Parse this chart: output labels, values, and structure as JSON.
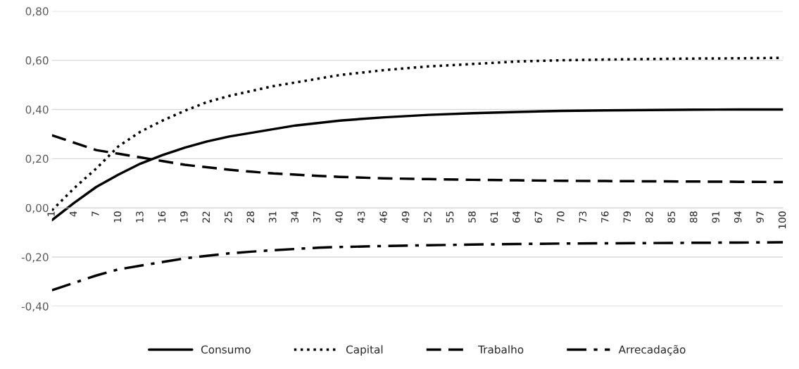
{
  "chart_data": {
    "type": "line",
    "x": [
      1,
      4,
      7,
      10,
      13,
      16,
      19,
      22,
      25,
      28,
      31,
      34,
      37,
      40,
      46,
      52,
      58,
      64,
      70,
      76,
      82,
      88,
      94,
      100
    ],
    "series": [
      {
        "name": "Consumo",
        "color": "#000000",
        "line_style": "solid",
        "values": [
          -0.05,
          0.02,
          0.085,
          0.135,
          0.18,
          0.215,
          0.245,
          0.27,
          0.29,
          0.305,
          0.32,
          0.335,
          0.345,
          0.355,
          0.368,
          0.378,
          0.385,
          0.39,
          0.394,
          0.396,
          0.398,
          0.399,
          0.4,
          0.4
        ]
      },
      {
        "name": "Capital",
        "color": "#000000",
        "line_style": "dotted",
        "values": [
          -0.01,
          0.08,
          0.16,
          0.25,
          0.31,
          0.355,
          0.395,
          0.43,
          0.455,
          0.475,
          0.495,
          0.51,
          0.525,
          0.54,
          0.56,
          0.575,
          0.585,
          0.595,
          0.6,
          0.603,
          0.605,
          0.607,
          0.608,
          0.61
        ]
      },
      {
        "name": "Trabalho",
        "color": "#000000",
        "line_style": "dashed",
        "values": [
          0.295,
          0.265,
          0.235,
          0.22,
          0.205,
          0.19,
          0.175,
          0.165,
          0.155,
          0.147,
          0.14,
          0.135,
          0.13,
          0.126,
          0.12,
          0.117,
          0.114,
          0.112,
          0.11,
          0.109,
          0.108,
          0.107,
          0.106,
          0.105
        ]
      },
      {
        "name": "Arrecadação",
        "color": "#000000",
        "line_style": "dashdot",
        "values": [
          -0.335,
          -0.305,
          -0.275,
          -0.25,
          -0.235,
          -0.22,
          -0.205,
          -0.195,
          -0.185,
          -0.178,
          -0.172,
          -0.167,
          -0.162,
          -0.159,
          -0.155,
          -0.152,
          -0.149,
          -0.147,
          -0.145,
          -0.144,
          -0.143,
          -0.142,
          -0.141,
          -0.14
        ]
      }
    ],
    "xlim": [
      1,
      100
    ],
    "xticks": [
      1,
      4,
      7,
      10,
      13,
      16,
      19,
      22,
      25,
      28,
      31,
      34,
      37,
      40,
      43,
      46,
      49,
      52,
      55,
      58,
      61,
      64,
      67,
      70,
      73,
      76,
      79,
      82,
      85,
      88,
      91,
      94,
      97,
      100
    ],
    "ylim": [
      -0.4,
      0.8
    ],
    "yticks": [
      {
        "value": -0.4,
        "label": "-0,40"
      },
      {
        "value": -0.2,
        "label": "-0,20"
      },
      {
        "value": 0.0,
        "label": "0,00"
      },
      {
        "value": 0.2,
        "label": "0,20"
      },
      {
        "value": 0.4,
        "label": "0,40"
      },
      {
        "value": 0.6,
        "label": "0,60"
      },
      {
        "value": 0.8,
        "label": "0,80"
      }
    ],
    "grid": "y",
    "legend": "bottom"
  }
}
